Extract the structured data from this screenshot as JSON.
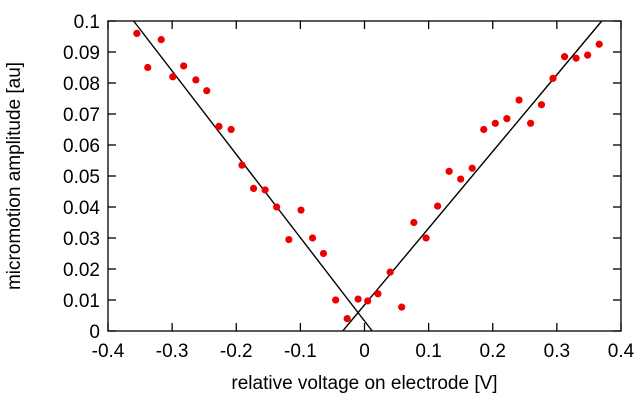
{
  "chart_data": {
    "type": "scatter",
    "title": "",
    "xlabel": "relative voltage on electrode [V]",
    "ylabel": "micromotion amplitude [au]",
    "xlim": [
      -0.4,
      0.4
    ],
    "ylim": [
      0,
      0.1
    ],
    "xticks": [
      "-0.4",
      "-0.3",
      "-0.2",
      "-0.1",
      "0",
      "0.1",
      "0.2",
      "0.3",
      "0.4"
    ],
    "yticks": [
      "0",
      "0.01",
      "0.02",
      "0.03",
      "0.04",
      "0.05",
      "0.06",
      "0.07",
      "0.08",
      "0.09",
      "0.1"
    ],
    "grid": false,
    "legend": "none",
    "colors": {
      "points": "#ee0000",
      "lines": "#000000"
    },
    "series": [
      {
        "kind": "points",
        "x": [
          -0.355,
          -0.338,
          -0.317,
          -0.299,
          -0.282,
          -0.263,
          -0.246,
          -0.227,
          -0.208,
          -0.191,
          -0.173,
          -0.155,
          -0.137,
          -0.118,
          -0.099,
          -0.081,
          -0.064,
          -0.045,
          -0.027,
          -0.01,
          0.005,
          0.021,
          0.04,
          0.058,
          0.077,
          0.096,
          0.114,
          0.132,
          0.15,
          0.168,
          0.186,
          0.204,
          0.222,
          0.241,
          0.259,
          0.276,
          0.294,
          0.312,
          0.33,
          0.348,
          0.366
        ],
        "y": [
          0.096,
          0.085,
          0.094,
          0.082,
          0.0855,
          0.081,
          0.0775,
          0.066,
          0.065,
          0.0535,
          0.046,
          0.0455,
          0.04,
          0.0295,
          0.039,
          0.03,
          0.025,
          0.01,
          0.004,
          0.0103,
          0.0097,
          0.012,
          0.019,
          0.0077,
          0.035,
          0.03,
          0.0403,
          0.0515,
          0.049,
          0.0525,
          0.065,
          0.067,
          0.0685,
          0.0745,
          0.067,
          0.073,
          0.0815,
          0.0885,
          0.088,
          0.089,
          0.0925
        ]
      },
      {
        "kind": "line",
        "x": [
          -0.36,
          0.012
        ],
        "y": [
          0.1,
          0
        ]
      },
      {
        "kind": "line",
        "x": [
          -0.034,
          0.37
        ],
        "y": [
          0,
          0.1
        ]
      }
    ]
  }
}
